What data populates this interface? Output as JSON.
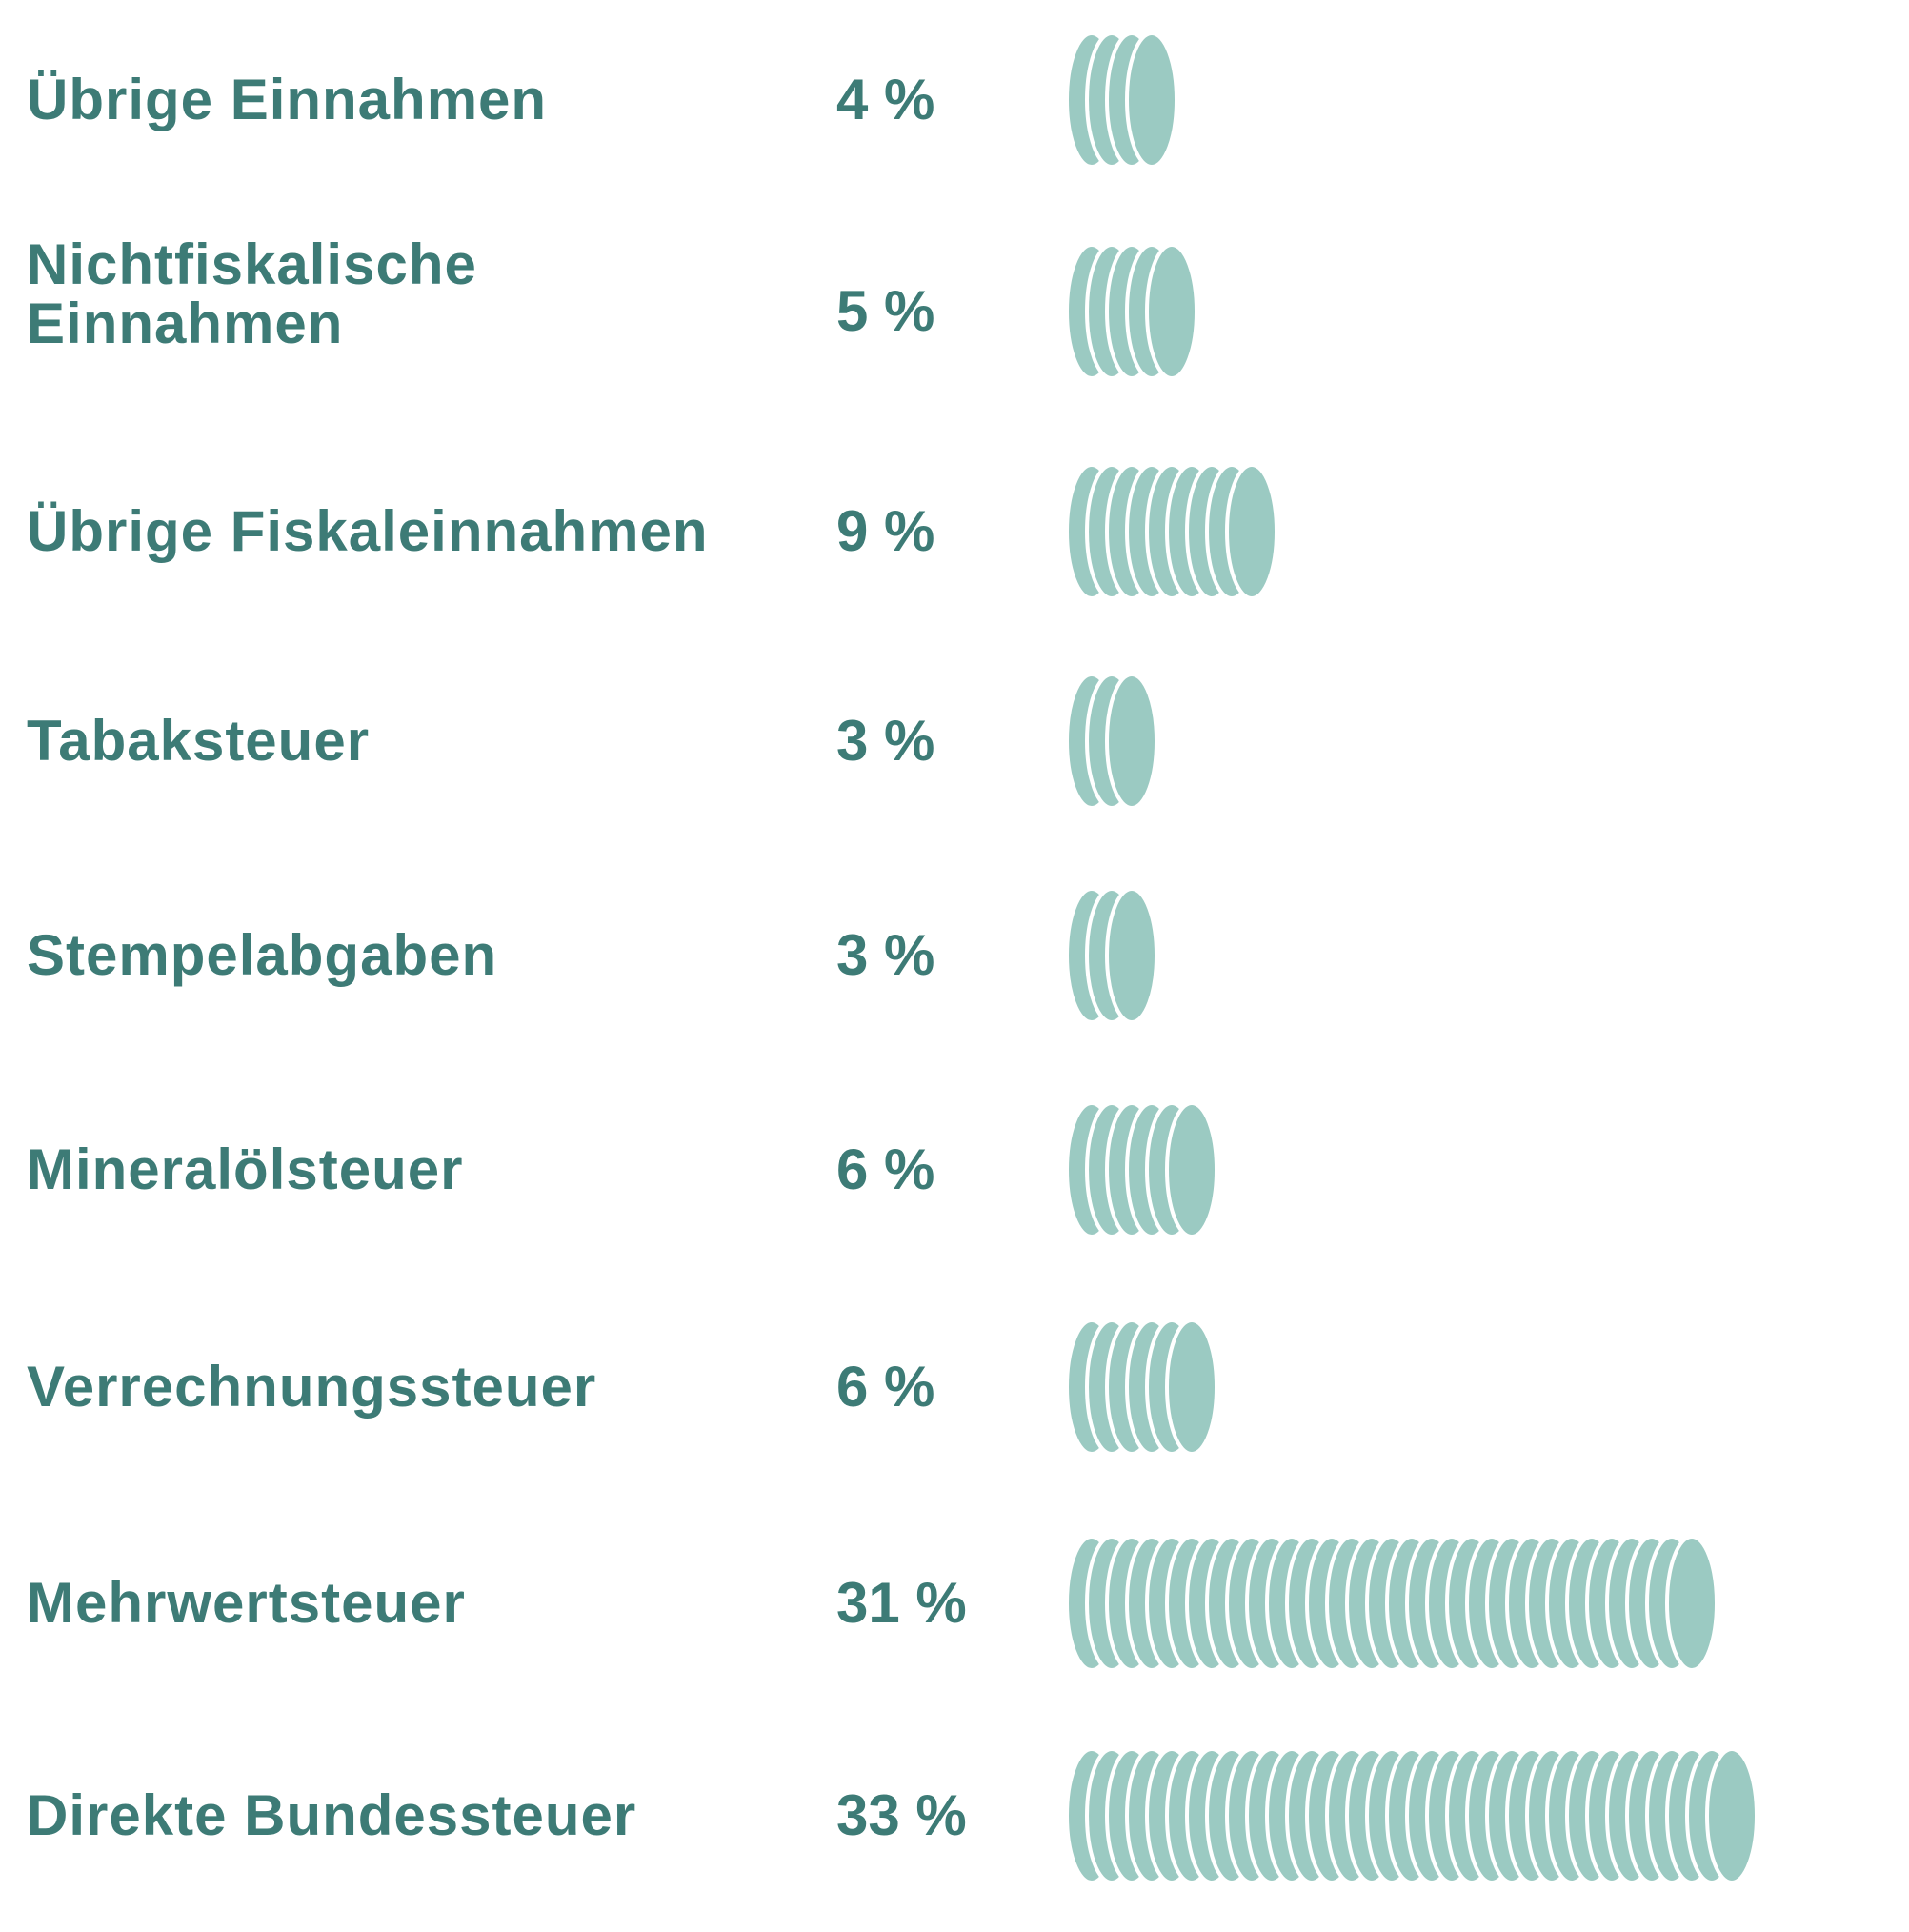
{
  "chart_data": {
    "type": "bar",
    "title": "",
    "xlabel": "",
    "ylabel": "",
    "unit": "%",
    "categories": [
      "Übrige Einnahmen",
      "Nichtfiskalische\nEinnahmen",
      "Übrige Fiskaleinnahmen",
      "Tabaksteuer",
      "Stempelabgaben",
      "Mineralölsteuer",
      "Verrechnungssteuer",
      "Mehrwertsteuer",
      "Direkte Bundessteuer"
    ],
    "values": [
      4,
      5,
      9,
      3,
      3,
      6,
      6,
      31,
      33
    ],
    "value_labels": [
      "4 %",
      "5 %",
      "9 %",
      "3 %",
      "3 %",
      "6 %",
      "6 %",
      "31 %",
      "33 %"
    ],
    "colors": {
      "text": "#3d7b76",
      "coin_fill": "#9bcac2",
      "coin_edge": "#ffffff"
    }
  }
}
